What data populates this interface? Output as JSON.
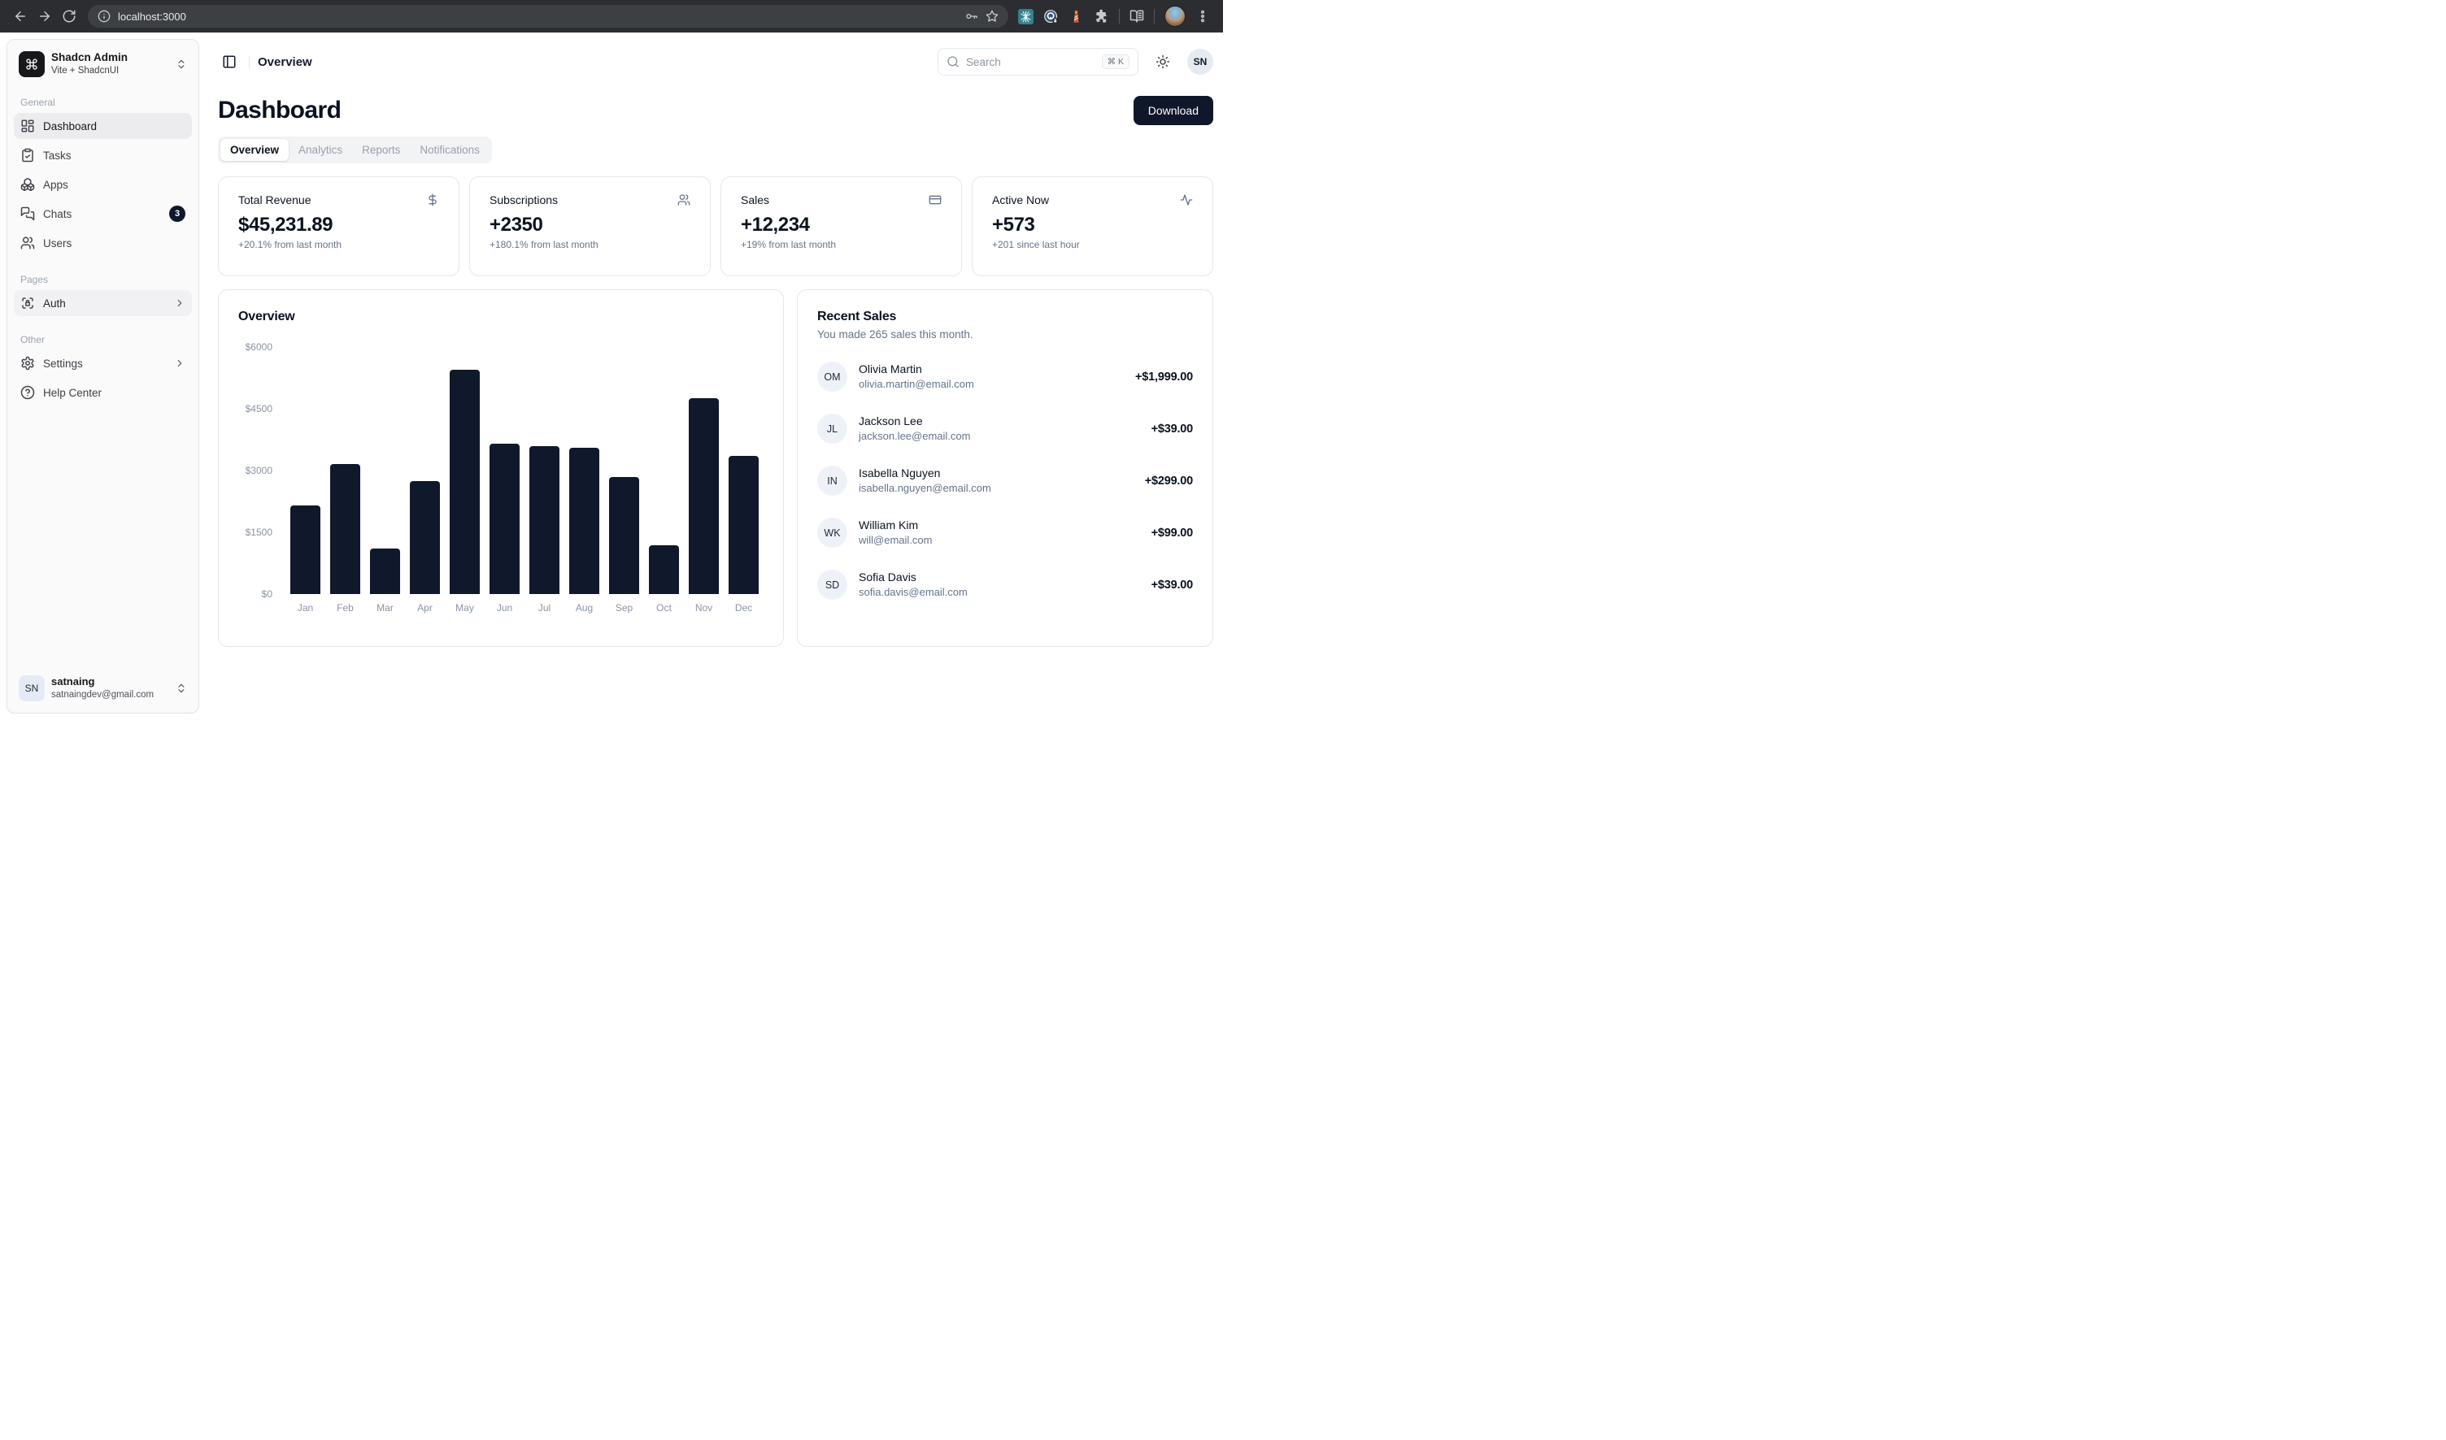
{
  "browser": {
    "url": "localhost:3000",
    "icons": [
      "back-icon",
      "forward-icon",
      "reload-icon",
      "site-info-icon",
      "password-key-icon",
      "bookmark-star-icon",
      "extension-arc-icon",
      "extension-1password-icon",
      "extension-lighthouse-icon",
      "extensions-puzzle-icon",
      "reading-list-icon",
      "profile-avatar",
      "menu-dots-icon"
    ]
  },
  "sidebar": {
    "team": {
      "name": "Shadcn Admin",
      "subtitle": "Vite + ShadcnUI",
      "logo_icon": "command-icon"
    },
    "sections": [
      {
        "label": "General",
        "items": [
          {
            "label": "Dashboard",
            "icon": "dashboard-icon",
            "active": true
          },
          {
            "label": "Tasks",
            "icon": "tasks-icon"
          },
          {
            "label": "Apps",
            "icon": "apps-icon"
          },
          {
            "label": "Chats",
            "icon": "chats-icon",
            "badge": "3"
          },
          {
            "label": "Users",
            "icon": "users-icon"
          }
        ]
      },
      {
        "label": "Pages",
        "items": [
          {
            "label": "Auth",
            "icon": "auth-lock-icon",
            "expandable": true
          }
        ]
      },
      {
        "label": "Other",
        "items": [
          {
            "label": "Settings",
            "icon": "settings-gear-icon",
            "expandable": true
          },
          {
            "label": "Help Center",
            "icon": "help-circle-icon"
          }
        ]
      }
    ],
    "user": {
      "name": "satnaing",
      "email": "satnaingdev@gmail.com",
      "initials": "SN"
    }
  },
  "header": {
    "breadcrumb": "Overview",
    "search": {
      "placeholder": "Search",
      "shortcut": "⌘ K"
    },
    "avatar_initials": "SN"
  },
  "page": {
    "title": "Dashboard",
    "download_label": "Download",
    "tabs": [
      {
        "label": "Overview",
        "active": true
      },
      {
        "label": "Analytics"
      },
      {
        "label": "Reports"
      },
      {
        "label": "Notifications"
      }
    ]
  },
  "stats": [
    {
      "title": "Total Revenue",
      "icon": "dollar-icon",
      "value": "$45,231.89",
      "caption": "+20.1% from last month"
    },
    {
      "title": "Subscriptions",
      "icon": "users-icon",
      "value": "+2350",
      "caption": "+180.1% from last month"
    },
    {
      "title": "Sales",
      "icon": "credit-card-icon",
      "value": "+12,234",
      "caption": "+19% from last month"
    },
    {
      "title": "Active Now",
      "icon": "activity-icon",
      "value": "+573",
      "caption": "+201 since last hour"
    }
  ],
  "chart_data": {
    "type": "bar",
    "title": "Overview",
    "categories": [
      "Jan",
      "Feb",
      "Mar",
      "Apr",
      "May",
      "Jun",
      "Jul",
      "Aug",
      "Sep",
      "Oct",
      "Nov",
      "Dec"
    ],
    "values": [
      2150,
      3150,
      1100,
      2750,
      5450,
      3650,
      3600,
      3550,
      2850,
      1175,
      4750,
      3350
    ],
    "ylim": [
      0,
      6000
    ],
    "ytick_values": [
      0,
      1500,
      3000,
      4500,
      6000
    ],
    "yticks": [
      "$0",
      "$1500",
      "$3000",
      "$4500",
      "$6000"
    ],
    "xlabel": "",
    "ylabel": "",
    "grid": false,
    "legend": false,
    "bar_color": "#10182b"
  },
  "recent_sales": {
    "title": "Recent Sales",
    "subtitle": "You made 265 sales this month.",
    "items": [
      {
        "initials": "OM",
        "name": "Olivia Martin",
        "email": "olivia.martin@email.com",
        "amount": "+$1,999.00"
      },
      {
        "initials": "JL",
        "name": "Jackson Lee",
        "email": "jackson.lee@email.com",
        "amount": "+$39.00"
      },
      {
        "initials": "IN",
        "name": "Isabella Nguyen",
        "email": "isabella.nguyen@email.com",
        "amount": "+$299.00"
      },
      {
        "initials": "WK",
        "name": "William Kim",
        "email": "will@email.com",
        "amount": "+$99.00"
      },
      {
        "initials": "SD",
        "name": "Sofia Davis",
        "email": "sofia.davis@email.com",
        "amount": "+$39.00"
      }
    ]
  },
  "colors": {
    "primary": "#0f172a",
    "bar": "#10182b",
    "muted_text": "#64748b",
    "border": "#e5e7eb",
    "sidebar_bg": "#fafafa",
    "badge_bg": "#0f172a",
    "browser_bar": "#2b2d31"
  }
}
